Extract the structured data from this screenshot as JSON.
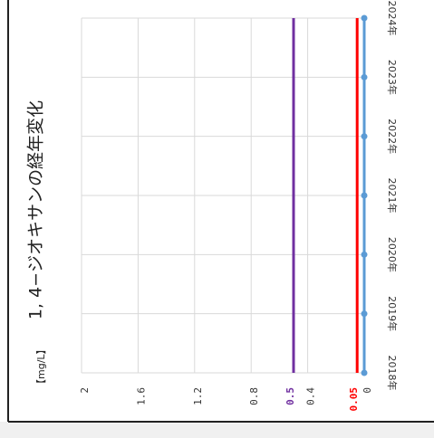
{
  "chart_data": {
    "type": "line",
    "title": "1, 4−ジオキサンの経年変化",
    "y_label": "【mg/L】",
    "categories": [
      "2018年",
      "2019年",
      "2020年",
      "2021年",
      "2022年",
      "2023年",
      "2024年"
    ],
    "series": [
      {
        "color": "#5b9bd5",
        "values": [
          0,
          0,
          0,
          0,
          0,
          0,
          0
        ]
      }
    ],
    "reference_lines": [
      {
        "value": 0.5,
        "color": "#7030a0"
      },
      {
        "value": 0.05,
        "color": "#ff0000"
      }
    ],
    "ylim": [
      0,
      2
    ],
    "yticks": [
      0,
      0.4,
      0.8,
      1.2,
      1.6,
      2
    ],
    "grid": true,
    "orientation": "rotated-left"
  }
}
